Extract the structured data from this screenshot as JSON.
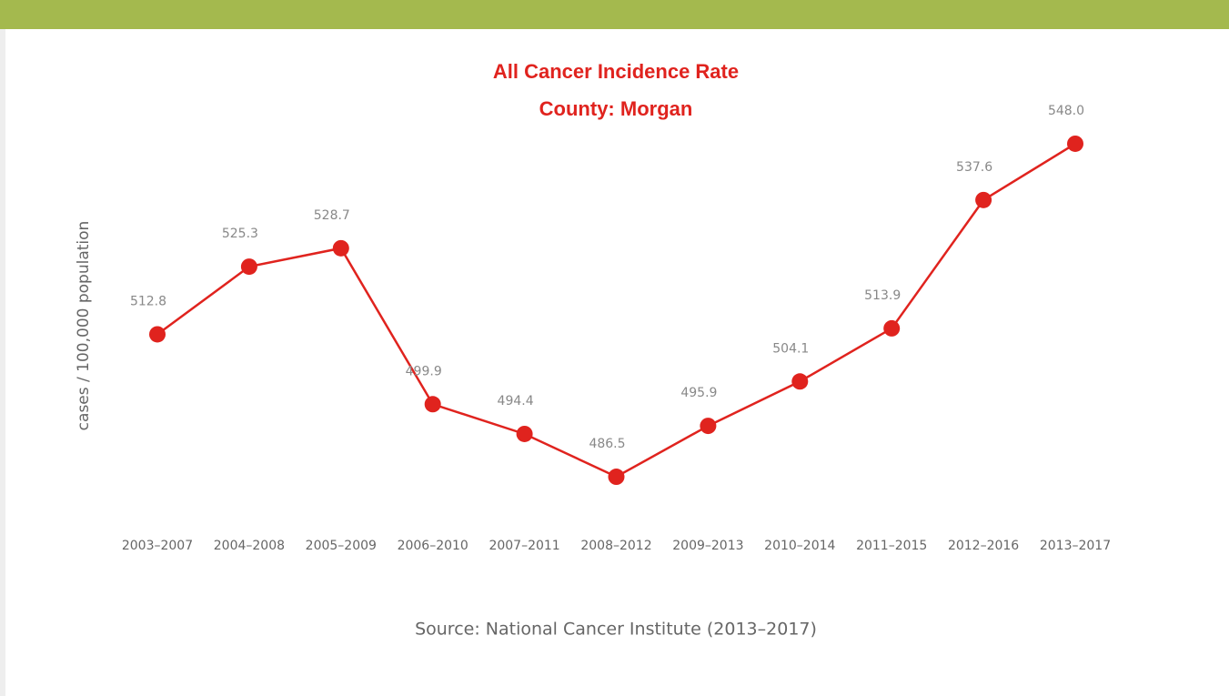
{
  "chart_data": {
    "type": "line",
    "title": "All Cancer Incidence Rate",
    "subtitle": "County: Morgan",
    "y_label": "cases / 100,000 population",
    "source": "Source: National Cancer Institute (2013–2017)",
    "categories": [
      "2003–2007",
      "2004–2008",
      "2005–2009",
      "2006–2010",
      "2007–2011",
      "2008–2012",
      "2009–2013",
      "2010–2014",
      "2011–2015",
      "2012–2016",
      "2013–2017"
    ],
    "values": [
      512.8,
      525.3,
      528.7,
      499.9,
      494.4,
      486.5,
      495.9,
      504.1,
      513.9,
      537.6,
      548.0
    ],
    "value_labels": [
      "512.8",
      "525.3",
      "528.7",
      "499.9",
      "494.4",
      "486.5",
      "495.9",
      "504.1",
      "513.9",
      "537.6",
      "548.0"
    ],
    "color": "#e0231e",
    "ylim": [
      480,
      555
    ]
  }
}
